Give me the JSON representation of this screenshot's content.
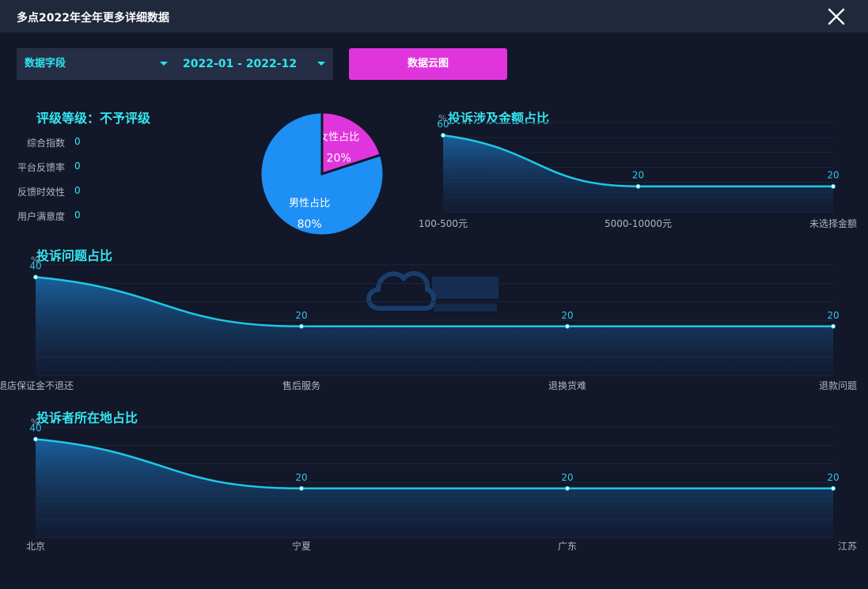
{
  "window": {
    "title": "多点2022年全年更多详细数据"
  },
  "filters": {
    "field_label": "数据字段",
    "date_range": "2022-01 - 2022-12",
    "cloud_button": "数据云图"
  },
  "rating": {
    "title": "评级等级：不予评级",
    "metrics": [
      {
        "label": "综合指数",
        "value": "0"
      },
      {
        "label": "平台反馈率",
        "value": "0"
      },
      {
        "label": "反馈时效性",
        "value": "0"
      },
      {
        "label": "用户满意度",
        "value": "0"
      }
    ]
  },
  "colors": {
    "accent": "#35e6f0",
    "line": "#1ec8e6",
    "female": "#e035dc",
    "male": "#1e8ff5",
    "button": "#e035dc"
  },
  "chart_data": [
    {
      "type": "pie",
      "categories": [
        "女性占比",
        "男性占比"
      ],
      "values": [
        20,
        80
      ],
      "labels": [
        "20%",
        "80%"
      ]
    },
    {
      "type": "area",
      "title": "投诉涉及金额占比",
      "ylabel": "%",
      "categories": [
        "100-500元",
        "5000-10000元",
        "未选择金额"
      ],
      "values": [
        60,
        20,
        20
      ],
      "ylim": [
        0,
        70
      ],
      "grid": true
    },
    {
      "type": "area",
      "title": "投诉问题占比",
      "ylabel": "%",
      "categories": [
        "退店保证金不退还",
        "售后服务",
        "退换货难",
        "退款问题"
      ],
      "values": [
        40,
        20,
        20,
        20
      ],
      "ylim": [
        0,
        45
      ],
      "grid": true
    },
    {
      "type": "area",
      "title": "投诉者所在地占比",
      "ylabel": "%",
      "categories": [
        "北京",
        "宁夏",
        "广东",
        "江苏"
      ],
      "values": [
        40,
        20,
        20,
        20
      ],
      "ylim": [
        0,
        45
      ],
      "grid": true
    }
  ]
}
